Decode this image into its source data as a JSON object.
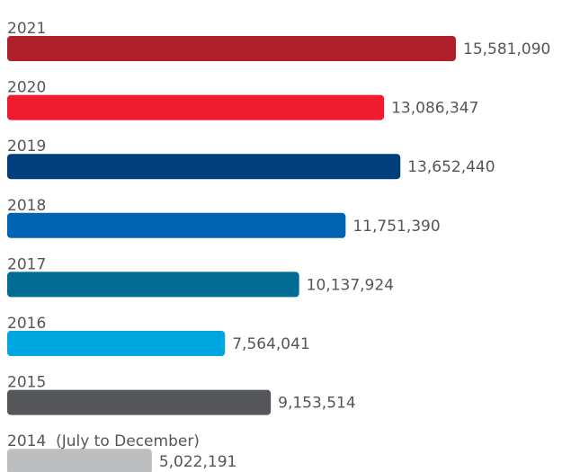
{
  "chart_data": {
    "type": "bar",
    "orientation": "horizontal",
    "categories": [
      "2021",
      "2020",
      "2019",
      "2018",
      "2017",
      "2016",
      "2015",
      "2014  (July to December)"
    ],
    "values": [
      15581090,
      13086347,
      13652440,
      11751390,
      10137924,
      7564041,
      9153514,
      5022191
    ],
    "value_labels": [
      "15,581,090",
      "13,086,347",
      "13,652,440",
      "11,751,390",
      "10,137,924",
      "7,564,041",
      "9,153,514",
      "5,022,191"
    ],
    "colors": [
      "#b01f2b",
      "#ee1c2e",
      "#003f7d",
      "#0063b3",
      "#006c94",
      "#00a6e0",
      "#54565a",
      "#bcbec0"
    ]
  }
}
